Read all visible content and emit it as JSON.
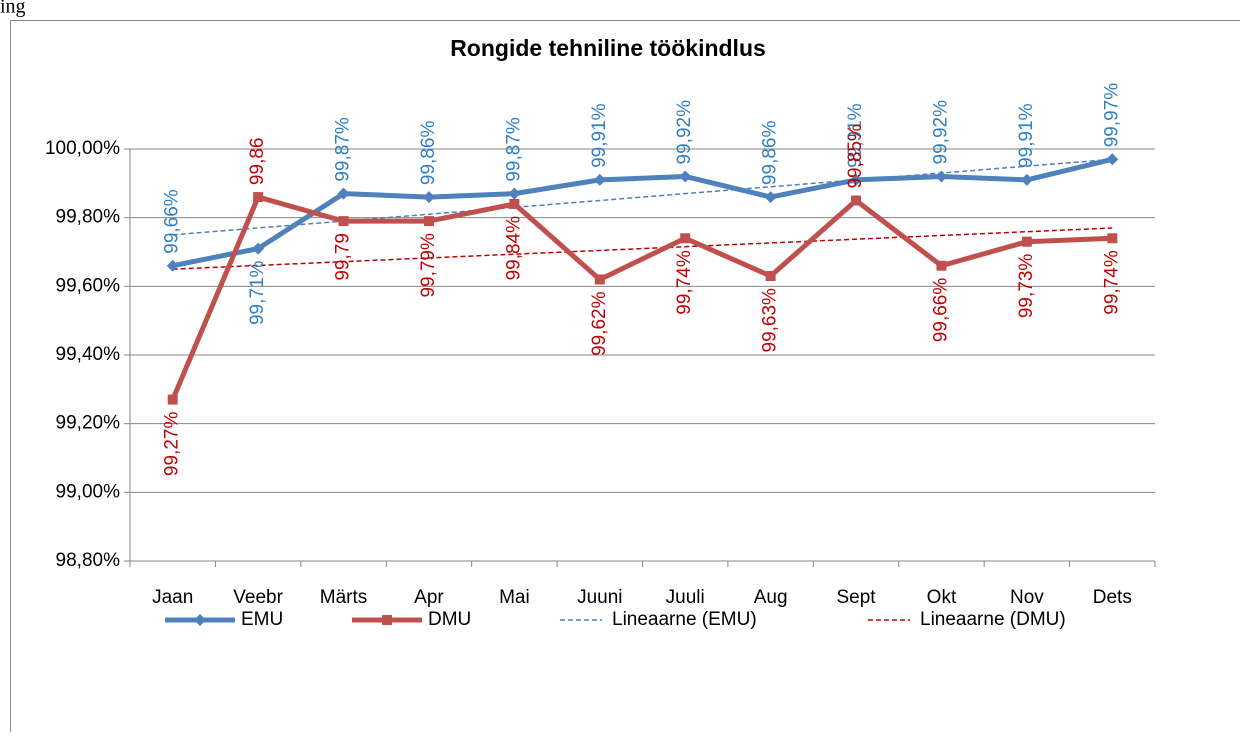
{
  "caption": "ing",
  "chart_data": {
    "type": "line",
    "title": "Rongide  tehniline töökindlus",
    "categories": [
      "Jaan",
      "Veebr",
      "Märts",
      "Apr",
      "Mai",
      "Juuni",
      "Juuli",
      "Aug",
      "Sept",
      "Okt",
      "Nov",
      "Dets"
    ],
    "series": [
      {
        "name": "EMU",
        "color": "#4f81bd",
        "label_color": "#2e7fc0",
        "marker": "diamond",
        "values": [
          99.66,
          99.71,
          99.87,
          99.86,
          99.87,
          99.91,
          99.92,
          99.86,
          99.91,
          99.92,
          99.91,
          99.97
        ],
        "value_labels": [
          "99,66%",
          "99,71%",
          "99,87%",
          "99,86%",
          "99,87%",
          "99,91%",
          "99,92%",
          "99,86%",
          "99,91%",
          "99,92%",
          "99,91%",
          "99,97%"
        ]
      },
      {
        "name": "DMU",
        "color": "#c0504d",
        "label_color": "#c00000",
        "marker": "square",
        "values": [
          99.27,
          99.86,
          99.79,
          99.79,
          99.84,
          99.62,
          99.74,
          99.63,
          99.85,
          99.66,
          99.73,
          99.74
        ],
        "value_labels": [
          "99,27%",
          "99,86",
          "99,79",
          "99,79%",
          "99,84%",
          "99,62%",
          "99,74%",
          "99,63%",
          "99,85%",
          "99,66%",
          "99,73%",
          "99,74%"
        ]
      }
    ],
    "trendlines": [
      {
        "name": "Lineaarne (EMU)",
        "color": "#4f81bd",
        "from": 99.75,
        "to": 99.97
      },
      {
        "name": "Lineaarne (DMU)",
        "color": "#c00000",
        "from": 99.65,
        "to": 99.77
      }
    ],
    "ylim": [
      98.8,
      100
    ],
    "yticks": [
      {
        "value": 98.8,
        "label": "98,80%"
      },
      {
        "value": 99,
        "label": "99,00%"
      },
      {
        "value": 99.2,
        "label": "99,20%"
      },
      {
        "value": 99.4,
        "label": "99,40%"
      },
      {
        "value": 99.6,
        "label": "99,60%"
      },
      {
        "value": 99.8,
        "label": "99,80%"
      },
      {
        "value": 100,
        "label": "100,00%"
      }
    ],
    "grid": true,
    "legend": "bottom"
  }
}
